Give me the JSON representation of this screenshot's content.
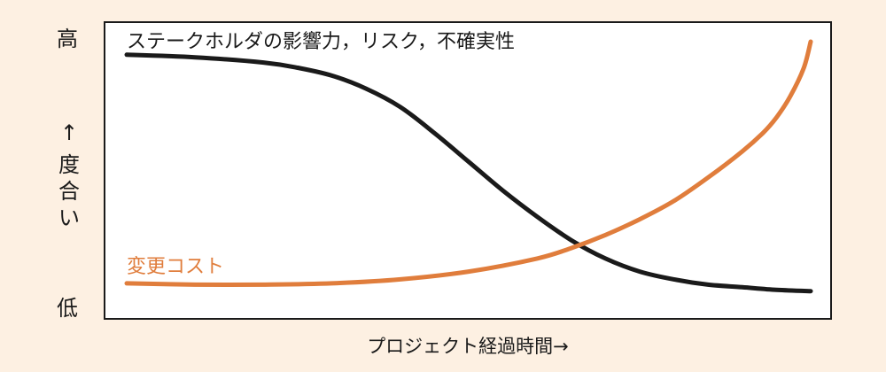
{
  "chart_data": {
    "type": "line",
    "title": "",
    "xlabel": "プロジェクト経過時間→",
    "ylabel": [
      "↑",
      "度",
      "合",
      "い"
    ],
    "y_ticks": {
      "high": "高",
      "low": "低"
    },
    "ylim": [
      0,
      1
    ],
    "xlim": [
      0,
      1
    ],
    "grid": false,
    "series": [
      {
        "name": "ステークホルダの影響力，リスク，不確実性",
        "color": "#1a1a1a",
        "x": [
          0.0,
          0.1,
          0.2,
          0.25,
          0.3,
          0.35,
          0.4,
          0.45,
          0.5,
          0.55,
          0.6,
          0.65,
          0.7,
          0.75,
          0.8,
          0.85,
          0.9,
          0.95,
          1.0
        ],
        "y": [
          0.95,
          0.94,
          0.92,
          0.9,
          0.87,
          0.82,
          0.75,
          0.65,
          0.54,
          0.43,
          0.33,
          0.24,
          0.17,
          0.12,
          0.09,
          0.07,
          0.06,
          0.05,
          0.045
        ]
      },
      {
        "name": "変更コスト",
        "color": "#e07d3c",
        "x": [
          0.0,
          0.1,
          0.2,
          0.3,
          0.4,
          0.5,
          0.6,
          0.65,
          0.7,
          0.75,
          0.8,
          0.85,
          0.9,
          0.93,
          0.95,
          0.97,
          0.99,
          1.0
        ],
        "y": [
          0.075,
          0.07,
          0.07,
          0.075,
          0.09,
          0.12,
          0.17,
          0.21,
          0.26,
          0.32,
          0.39,
          0.48,
          0.58,
          0.65,
          0.71,
          0.79,
          0.9,
          1.0
        ]
      }
    ]
  }
}
